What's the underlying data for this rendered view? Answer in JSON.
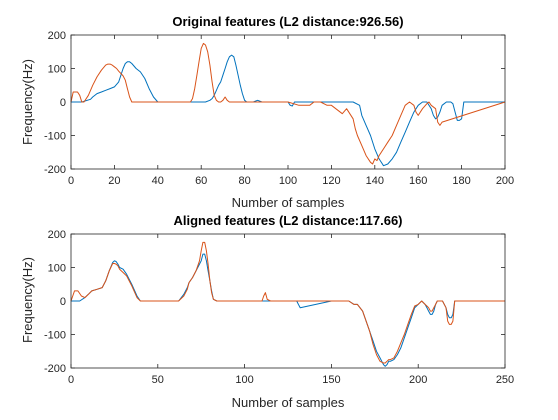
{
  "figure": {
    "colors": {
      "series1": "#0072BD",
      "series2": "#D95319",
      "axis": "#262626"
    }
  },
  "chart_data": [
    {
      "type": "line",
      "title": "Original features (L2 distance:926.56)",
      "xlabel": "Number of samples",
      "ylabel": "Frequency(Hz)",
      "xlim": [
        0,
        200
      ],
      "ylim": [
        -200,
        200
      ],
      "xticks": [
        0,
        20,
        40,
        60,
        80,
        100,
        120,
        140,
        160,
        180,
        200
      ],
      "yticks": [
        -200,
        -100,
        0,
        100,
        200
      ],
      "grid": false,
      "series": [
        {
          "color": "#0072BD",
          "x": [
            0,
            5,
            9,
            10,
            12,
            14,
            16,
            18,
            20,
            22,
            23,
            24,
            25,
            26,
            27,
            28,
            30,
            32,
            34,
            36,
            38,
            40,
            50,
            58,
            60,
            62,
            64,
            65,
            66,
            67,
            68,
            69,
            70,
            71,
            72,
            73,
            74,
            75,
            76,
            77,
            78,
            79,
            80,
            81,
            82,
            84,
            86,
            88,
            100,
            101,
            102,
            103,
            110,
            114,
            118,
            122,
            126,
            130,
            133,
            134,
            136,
            138,
            140,
            142,
            144,
            146,
            148,
            150,
            152,
            154,
            156,
            158,
            160,
            162,
            164,
            166,
            167,
            168,
            169,
            170,
            171,
            172,
            173,
            174,
            175,
            176,
            177,
            178,
            179,
            180,
            181,
            200
          ],
          "y": [
            0,
            0,
            8,
            15,
            25,
            30,
            35,
            40,
            45,
            60,
            80,
            100,
            115,
            120,
            120,
            115,
            100,
            90,
            70,
            40,
            15,
            0,
            0,
            0,
            0,
            0,
            5,
            10,
            20,
            35,
            50,
            60,
            80,
            100,
            120,
            135,
            140,
            135,
            110,
            80,
            50,
            25,
            5,
            0,
            0,
            0,
            5,
            0,
            0,
            -10,
            -12,
            0,
            0,
            0,
            0,
            0,
            0,
            0,
            -10,
            -40,
            -70,
            -100,
            -140,
            -170,
            -190,
            -185,
            -170,
            -150,
            -120,
            -90,
            -60,
            -30,
            -10,
            0,
            0,
            -20,
            -40,
            -50,
            -45,
            -30,
            -10,
            -5,
            0,
            0,
            0,
            -5,
            -30,
            -55,
            -55,
            -50,
            0,
            0
          ]
        },
        {
          "color": "#D95319",
          "x": [
            0,
            1,
            3,
            4,
            5,
            6,
            8,
            10,
            12,
            14,
            16,
            17,
            18,
            19,
            20,
            21,
            22,
            23,
            24,
            25,
            26,
            27,
            28,
            30,
            35,
            55,
            56,
            57,
            58,
            59,
            60,
            61,
            62,
            63,
            64,
            65,
            66,
            67,
            68,
            69,
            70,
            71,
            72,
            73,
            74,
            75,
            80,
            100,
            105,
            110,
            112,
            115,
            118,
            120,
            125,
            127,
            130,
            131,
            132,
            134,
            136,
            138,
            139,
            140,
            141,
            142,
            144,
            146,
            148,
            150,
            152,
            154,
            156,
            158,
            159,
            160,
            162,
            164,
            165,
            166,
            168,
            169,
            170,
            171,
            200
          ],
          "y": [
            0,
            30,
            30,
            20,
            0,
            0,
            20,
            50,
            75,
            95,
            110,
            113,
            113,
            110,
            105,
            100,
            92,
            85,
            78,
            65,
            40,
            15,
            0,
            0,
            0,
            0,
            10,
            40,
            80,
            120,
            160,
            175,
            170,
            150,
            110,
            60,
            20,
            5,
            0,
            0,
            5,
            15,
            5,
            0,
            0,
            0,
            0,
            0,
            -10,
            -10,
            0,
            0,
            -10,
            -10,
            -35,
            -20,
            -50,
            -80,
            -100,
            -130,
            -160,
            -180,
            -185,
            -170,
            -175,
            -160,
            -140,
            -120,
            -100,
            -70,
            -40,
            -10,
            0,
            -10,
            -30,
            -40,
            -20,
            -5,
            0,
            -10,
            -20,
            -60,
            -70,
            -60,
            0
          ]
        }
      ]
    },
    {
      "type": "line",
      "title": "Aligned features (L2 distance:117.66)",
      "xlabel": "Number of samples",
      "ylabel": "Frequency(Hz)",
      "xlim": [
        0,
        250
      ],
      "ylim": [
        -200,
        200
      ],
      "xticks": [
        0,
        50,
        100,
        150,
        200,
        250
      ],
      "yticks": [
        -200,
        -100,
        0,
        100,
        200
      ],
      "grid": false,
      "series": [
        {
          "color": "#0072BD",
          "x": [
            0,
            5,
            8,
            10,
            12,
            15,
            18,
            20,
            22,
            24,
            25,
            26,
            27,
            28,
            30,
            32,
            35,
            38,
            40,
            50,
            62,
            65,
            67,
            68,
            70,
            72,
            74,
            75,
            76,
            77,
            78,
            79,
            80,
            81,
            82,
            84,
            86,
            110,
            125,
            130,
            131,
            132,
            150,
            155,
            160,
            163,
            165,
            168,
            170,
            172,
            174,
            176,
            178,
            180,
            181,
            182,
            183,
            184,
            186,
            188,
            190,
            192,
            194,
            196,
            198,
            200,
            202,
            204,
            205,
            206,
            207,
            208,
            209,
            210,
            211,
            212,
            214,
            216,
            217,
            218,
            219,
            220,
            221,
            222,
            250
          ],
          "y": [
            0,
            0,
            10,
            20,
            30,
            35,
            40,
            60,
            90,
            115,
            120,
            118,
            110,
            100,
            95,
            80,
            50,
            15,
            0,
            0,
            0,
            20,
            40,
            55,
            70,
            90,
            110,
            120,
            140,
            140,
            120,
            90,
            60,
            30,
            5,
            0,
            0,
            0,
            0,
            0,
            -10,
            -20,
            0,
            0,
            0,
            -10,
            -10,
            -30,
            -60,
            -90,
            -120,
            -150,
            -170,
            -190,
            -195,
            -190,
            -180,
            -180,
            -175,
            -160,
            -140,
            -110,
            -80,
            -50,
            -20,
            -10,
            0,
            -10,
            -20,
            -30,
            -40,
            -40,
            -30,
            -10,
            0,
            0,
            0,
            -20,
            -40,
            -50,
            -50,
            -40,
            0,
            0,
            0
          ]
        },
        {
          "color": "#D95319",
          "x": [
            0,
            2,
            4,
            6,
            8,
            10,
            12,
            15,
            18,
            20,
            22,
            24,
            25,
            26,
            27,
            28,
            30,
            32,
            35,
            38,
            40,
            50,
            62,
            65,
            67,
            68,
            70,
            72,
            74,
            75,
            76,
            77,
            78,
            79,
            80,
            81,
            82,
            84,
            86,
            110,
            111,
            112,
            113,
            115,
            160,
            163,
            165,
            168,
            170,
            172,
            174,
            176,
            178,
            180,
            181,
            182,
            183,
            184,
            186,
            188,
            190,
            192,
            194,
            196,
            198,
            200,
            202,
            204,
            205,
            206,
            207,
            208,
            209,
            210,
            211,
            212,
            214,
            216,
            217,
            218,
            219,
            220,
            221,
            222,
            250
          ],
          "y": [
            0,
            30,
            30,
            15,
            10,
            20,
            30,
            35,
            40,
            60,
            90,
            112,
            112,
            110,
            105,
            95,
            85,
            75,
            45,
            10,
            0,
            0,
            0,
            15,
            35,
            55,
            70,
            90,
            120,
            150,
            175,
            175,
            150,
            110,
            60,
            25,
            5,
            0,
            0,
            0,
            15,
            25,
            5,
            0,
            0,
            -10,
            -10,
            -30,
            -60,
            -90,
            -130,
            -160,
            -180,
            -185,
            -185,
            -180,
            -175,
            -175,
            -170,
            -150,
            -125,
            -100,
            -70,
            -40,
            -15,
            -10,
            0,
            -10,
            -15,
            -20,
            -30,
            -30,
            -20,
            -10,
            0,
            0,
            0,
            -20,
            -60,
            -70,
            -70,
            -60,
            0,
            0,
            0
          ]
        }
      ]
    }
  ]
}
